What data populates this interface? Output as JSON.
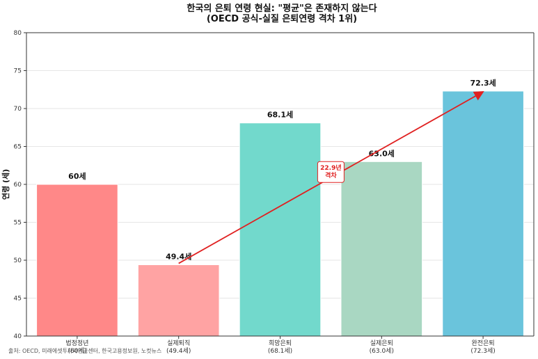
{
  "chart_data": {
    "type": "bar",
    "title": "한국의 은퇴 연령 현실: \"평균\"은 존재하지 않는다",
    "subtitle": "(OECD 공식-실질 은퇴연령 격차 1위)",
    "xlabel": "",
    "ylabel": "연령 (세)",
    "ylim": [
      40,
      80
    ],
    "yticks": [
      40,
      45,
      50,
      55,
      60,
      65,
      70,
      75,
      80
    ],
    "grid": "horizontal",
    "categories": [
      "법정정년\n(60세)",
      "실제퇴직\n(49.4세)",
      "희망은퇴\n(68.1세)",
      "실제은퇴\n(63.0세)",
      "완전은퇴\n(72.3세)"
    ],
    "values": [
      60,
      49.4,
      68.1,
      63.0,
      72.3
    ],
    "value_labels": [
      "60세",
      "49.4세",
      "68.1세",
      "63.0세",
      "72.3세"
    ],
    "colors": [
      "#ff8888",
      "#ffa3a3",
      "#72d9cc",
      "#a9d7c2",
      "#6ac4dc"
    ],
    "annotation": {
      "text": "22.9년\n격차",
      "from_category": 1,
      "to_category": 4,
      "color": "#e02020"
    }
  },
  "source_text": "출처: OECD, 미래에셋투자와연금센터, 한국고용정보원, 노컷뉴스"
}
